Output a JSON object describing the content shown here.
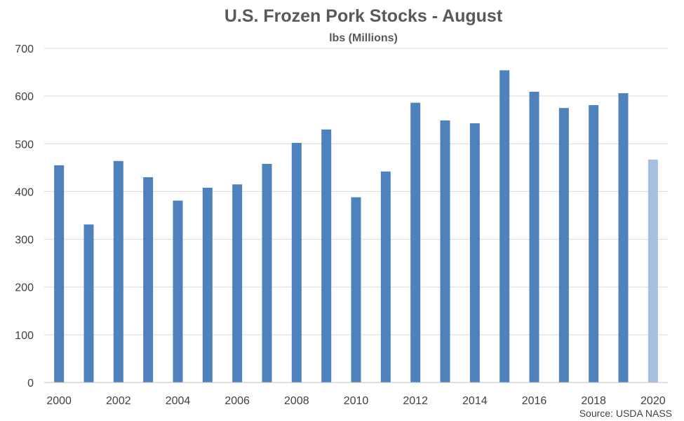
{
  "chart_data": {
    "type": "bar",
    "title": "U.S. Frozen Pork Stocks - August",
    "subtitle": "lbs (Millions)",
    "xlabel": "",
    "ylabel": "",
    "categories": [
      "2000",
      "2001",
      "2002",
      "2003",
      "2004",
      "2005",
      "2006",
      "2007",
      "2008",
      "2009",
      "2010",
      "2011",
      "2012",
      "2013",
      "2014",
      "2015",
      "2016",
      "2017",
      "2018",
      "2019",
      "2020"
    ],
    "values": [
      455,
      331,
      464,
      430,
      381,
      408,
      415,
      458,
      502,
      530,
      388,
      442,
      586,
      549,
      543,
      654,
      609,
      575,
      581,
      606,
      467
    ],
    "x_tick_labels": [
      "2000",
      "2002",
      "2004",
      "2006",
      "2008",
      "2010",
      "2012",
      "2014",
      "2016",
      "2018",
      "2020"
    ],
    "y_tick_labels": [
      "0",
      "100",
      "200",
      "300",
      "400",
      "500",
      "600",
      "700"
    ],
    "ylim": [
      0,
      700
    ],
    "grid": true,
    "legend": "none",
    "colors": {
      "bar": "#4f81bd",
      "highlight": "#a7bfde"
    },
    "highlight_categories": [
      "2020"
    ],
    "source": "Source: USDA NASS"
  }
}
